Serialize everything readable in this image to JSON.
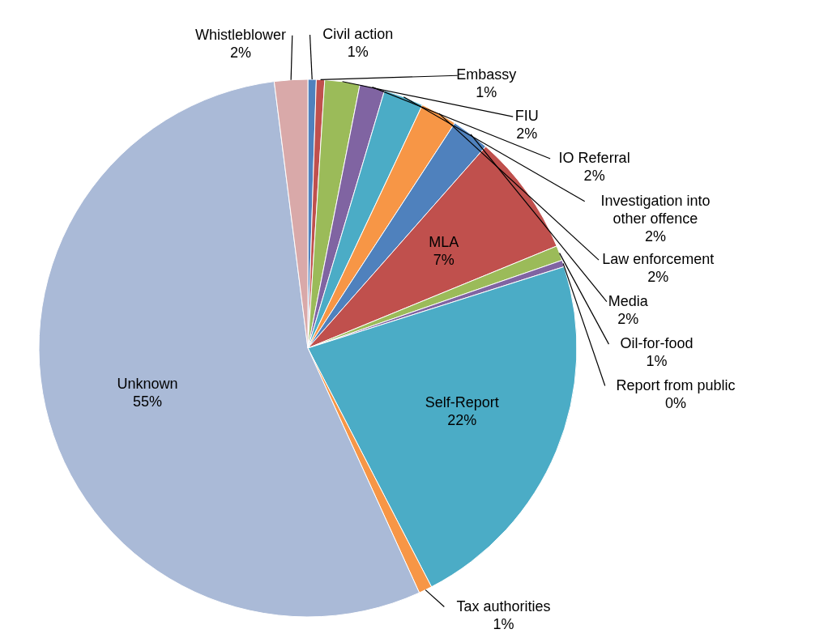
{
  "chart_data": {
    "type": "pie",
    "categories": [
      "Civil action",
      "Embassy",
      "FIU",
      "IO Referral",
      "Investigation into other offence",
      "Law enforcement",
      "Media",
      "MLA",
      "Oil-for-food",
      "Report from public",
      "Self-Report",
      "Tax authorities",
      "Unknown",
      "Whistleblower"
    ],
    "values": [
      0.5,
      0.5,
      2.1,
      1.5,
      2.4,
      2.2,
      2.3,
      7.3,
      0.9,
      0.4,
      22.3,
      0.8,
      54.8,
      2.0
    ],
    "colors": [
      "#4f81bd",
      "#c0504d",
      "#9bbb59",
      "#8064a2",
      "#4bacc6",
      "#f79646",
      "#4f81bd",
      "#c0504d",
      "#9bbb59",
      "#8064a2",
      "#4bacc6",
      "#f79646",
      "#aabad7",
      "#d9a9a9"
    ],
    "value_labels": [
      "1%",
      "1%",
      "2%",
      "2%",
      "2%",
      "2%",
      "2%",
      "7%",
      "1%",
      "0%",
      "22%",
      "1%",
      "55%",
      "2%"
    ]
  }
}
